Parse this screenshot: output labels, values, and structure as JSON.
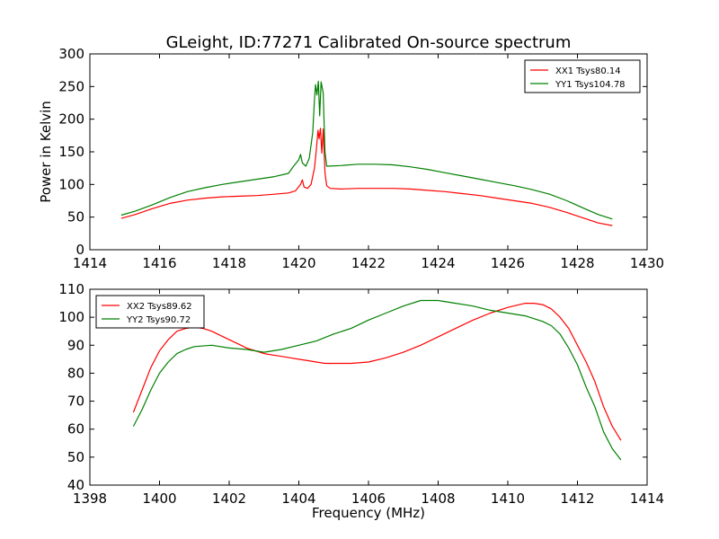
{
  "figure": {
    "title": "GLeight, ID:77271 Calibrated On-source spectrum"
  },
  "chart_data": [
    {
      "type": "line",
      "title": "GLeight, ID:77271 Calibrated On-source spectrum",
      "xlabel": "",
      "ylabel": "Power in Kelvin",
      "xlim": [
        1414,
        1430
      ],
      "ylim": [
        0,
        300
      ],
      "xticks": [
        1414,
        1416,
        1418,
        1420,
        1422,
        1424,
        1426,
        1428,
        1430
      ],
      "yticks": [
        0,
        50,
        100,
        150,
        200,
        250,
        300
      ],
      "grid": false,
      "legend_position": "top-right",
      "series": [
        {
          "name": "XX1 Tsys80.14",
          "color": "#ff0000",
          "points": [
            [
              1414.9,
              48
            ],
            [
              1415.3,
              54
            ],
            [
              1415.8,
              63
            ],
            [
              1416.3,
              71
            ],
            [
              1416.8,
              76
            ],
            [
              1417.3,
              79
            ],
            [
              1417.8,
              81
            ],
            [
              1418.3,
              82
            ],
            [
              1418.8,
              83
            ],
            [
              1419.3,
              85
            ],
            [
              1419.7,
              87
            ],
            [
              1419.9,
              90
            ],
            [
              1420.05,
              100
            ],
            [
              1420.1,
              107
            ],
            [
              1420.15,
              96
            ],
            [
              1420.25,
              94
            ],
            [
              1420.35,
              100
            ],
            [
              1420.45,
              125
            ],
            [
              1420.5,
              152
            ],
            [
              1420.55,
              183
            ],
            [
              1420.58,
              170
            ],
            [
              1420.62,
              186
            ],
            [
              1420.66,
              148
            ],
            [
              1420.7,
              185
            ],
            [
              1420.75,
              118
            ],
            [
              1420.8,
              98
            ],
            [
              1420.9,
              94
            ],
            [
              1421.2,
              93
            ],
            [
              1421.7,
              94
            ],
            [
              1422.2,
              94
            ],
            [
              1422.7,
              94
            ],
            [
              1423.2,
              93
            ],
            [
              1423.7,
              91
            ],
            [
              1424.2,
              89
            ],
            [
              1424.7,
              86
            ],
            [
              1425.2,
              83
            ],
            [
              1425.7,
              79
            ],
            [
              1426.2,
              75
            ],
            [
              1426.7,
              71
            ],
            [
              1427.2,
              65
            ],
            [
              1427.7,
              57
            ],
            [
              1428.2,
              48
            ],
            [
              1428.6,
              41
            ],
            [
              1429.0,
              37
            ]
          ]
        },
        {
          "name": "YY1 Tsys104.78",
          "color": "#008000",
          "points": [
            [
              1414.9,
              53
            ],
            [
              1415.3,
              59
            ],
            [
              1415.8,
              69
            ],
            [
              1416.3,
              80
            ],
            [
              1416.8,
              89
            ],
            [
              1417.3,
              95
            ],
            [
              1417.8,
              100
            ],
            [
              1418.3,
              104
            ],
            [
              1418.8,
              108
            ],
            [
              1419.3,
              112
            ],
            [
              1419.7,
              117
            ],
            [
              1419.85,
              128
            ],
            [
              1420.0,
              138
            ],
            [
              1420.05,
              146
            ],
            [
              1420.1,
              133
            ],
            [
              1420.2,
              128
            ],
            [
              1420.3,
              140
            ],
            [
              1420.4,
              180
            ],
            [
              1420.45,
              230
            ],
            [
              1420.48,
              253
            ],
            [
              1420.52,
              237
            ],
            [
              1420.56,
              258
            ],
            [
              1420.6,
              205
            ],
            [
              1420.64,
              257
            ],
            [
              1420.7,
              240
            ],
            [
              1420.75,
              150
            ],
            [
              1420.8,
              128
            ],
            [
              1421.2,
              129
            ],
            [
              1421.7,
              131
            ],
            [
              1422.2,
              131
            ],
            [
              1422.7,
              130
            ],
            [
              1423.2,
              127
            ],
            [
              1423.7,
              123
            ],
            [
              1424.2,
              118
            ],
            [
              1424.7,
              113
            ],
            [
              1425.2,
              108
            ],
            [
              1425.7,
              103
            ],
            [
              1426.2,
              98
            ],
            [
              1426.7,
              92
            ],
            [
              1427.2,
              85
            ],
            [
              1427.7,
              75
            ],
            [
              1428.2,
              63
            ],
            [
              1428.6,
              54
            ],
            [
              1429.0,
              47
            ]
          ]
        }
      ]
    },
    {
      "type": "line",
      "title": "",
      "xlabel": "Frequency (MHz)",
      "ylabel": "",
      "xlim": [
        1398,
        1414
      ],
      "ylim": [
        40,
        110
      ],
      "xticks": [
        1398,
        1400,
        1402,
        1404,
        1406,
        1408,
        1410,
        1412,
        1414
      ],
      "yticks": [
        40,
        50,
        60,
        70,
        80,
        90,
        100,
        110
      ],
      "grid": false,
      "legend_position": "top-left",
      "series": [
        {
          "name": "XX2 Tsys89.62",
          "color": "#ff0000",
          "points": [
            [
              1399.25,
              66
            ],
            [
              1399.5,
              74
            ],
            [
              1399.75,
              82
            ],
            [
              1400.0,
              88
            ],
            [
              1400.25,
              92
            ],
            [
              1400.5,
              95
            ],
            [
              1400.75,
              96
            ],
            [
              1401.0,
              96.5
            ],
            [
              1401.25,
              96
            ],
            [
              1401.5,
              95
            ],
            [
              1401.75,
              93.5
            ],
            [
              1402.0,
              92
            ],
            [
              1402.25,
              90.5
            ],
            [
              1402.5,
              89
            ],
            [
              1402.75,
              88
            ],
            [
              1403.0,
              87
            ],
            [
              1403.25,
              86.5
            ],
            [
              1403.5,
              86
            ],
            [
              1403.75,
              85.5
            ],
            [
              1404.0,
              85
            ],
            [
              1404.25,
              84.5
            ],
            [
              1404.5,
              84
            ],
            [
              1404.75,
              83.5
            ],
            [
              1405.0,
              83.5
            ],
            [
              1405.5,
              83.5
            ],
            [
              1406.0,
              84
            ],
            [
              1406.5,
              85.5
            ],
            [
              1407.0,
              87.5
            ],
            [
              1407.5,
              90
            ],
            [
              1408.0,
              93
            ],
            [
              1408.5,
              96
            ],
            [
              1409.0,
              99
            ],
            [
              1409.5,
              101.5
            ],
            [
              1410.0,
              103.5
            ],
            [
              1410.5,
              105
            ],
            [
              1410.75,
              105
            ],
            [
              1411.0,
              104.5
            ],
            [
              1411.25,
              103
            ],
            [
              1411.5,
              100
            ],
            [
              1411.75,
              96
            ],
            [
              1412.0,
              90
            ],
            [
              1412.25,
              84
            ],
            [
              1412.5,
              77
            ],
            [
              1412.75,
              68
            ],
            [
              1413.0,
              61
            ],
            [
              1413.25,
              56
            ]
          ]
        },
        {
          "name": "YY2 Tsys90.72",
          "color": "#008000",
          "points": [
            [
              1399.25,
              61
            ],
            [
              1399.5,
              67
            ],
            [
              1399.75,
              74
            ],
            [
              1400.0,
              80
            ],
            [
              1400.25,
              84
            ],
            [
              1400.5,
              87
            ],
            [
              1400.75,
              88.5
            ],
            [
              1401.0,
              89.5
            ],
            [
              1401.5,
              90
            ],
            [
              1402.0,
              89
            ],
            [
              1402.5,
              88.5
            ],
            [
              1403.0,
              87.5
            ],
            [
              1403.5,
              88.5
            ],
            [
              1404.0,
              90
            ],
            [
              1404.5,
              91.5
            ],
            [
              1405.0,
              94
            ],
            [
              1405.5,
              96
            ],
            [
              1406.0,
              99
            ],
            [
              1406.5,
              101.5
            ],
            [
              1407.0,
              104
            ],
            [
              1407.5,
              106
            ],
            [
              1408.0,
              106
            ],
            [
              1408.5,
              105
            ],
            [
              1409.0,
              104
            ],
            [
              1409.5,
              102.5
            ],
            [
              1410.0,
              101.5
            ],
            [
              1410.5,
              100.5
            ],
            [
              1411.0,
              98.5
            ],
            [
              1411.25,
              97
            ],
            [
              1411.5,
              94
            ],
            [
              1411.75,
              89
            ],
            [
              1412.0,
              83
            ],
            [
              1412.25,
              75
            ],
            [
              1412.5,
              68
            ],
            [
              1412.75,
              59
            ],
            [
              1413.0,
              53
            ],
            [
              1413.25,
              49
            ]
          ]
        }
      ]
    }
  ]
}
